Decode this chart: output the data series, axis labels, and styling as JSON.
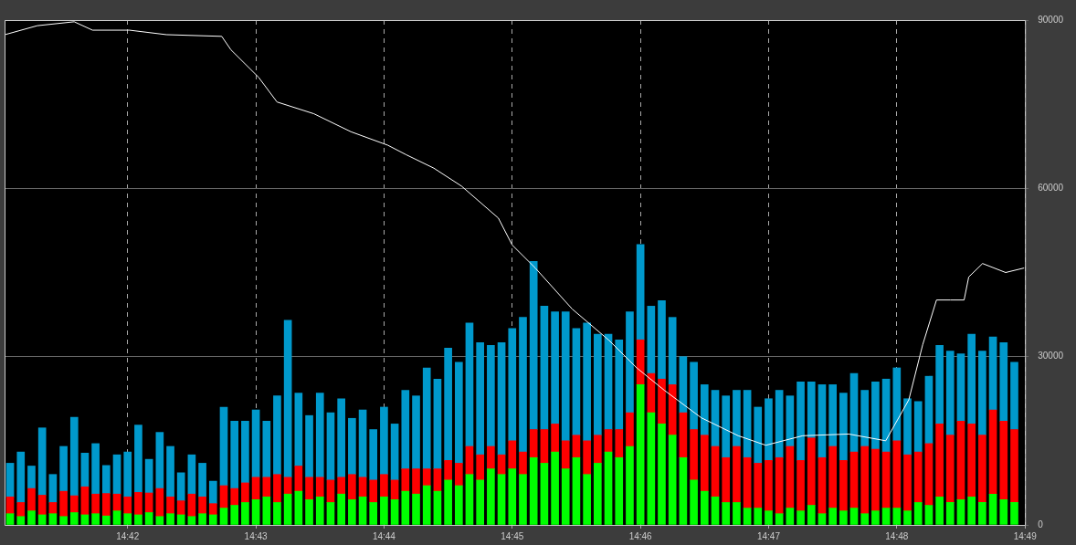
{
  "chart_data": {
    "type": "bar",
    "stacked": true,
    "grid": true,
    "x": [
      14.68472,
      14.68611,
      14.6875,
      14.68889,
      14.69028,
      14.69167,
      14.69306,
      14.69444,
      14.69583,
      14.69722,
      14.69861,
      14.7,
      14.70139,
      14.70278,
      14.70417,
      14.70556,
      14.70694,
      14.70833,
      14.70972,
      14.71111,
      14.7125,
      14.71389,
      14.71528,
      14.71667,
      14.71806,
      14.71944,
      14.72083,
      14.72222,
      14.72361,
      14.725,
      14.72639,
      14.72778,
      14.72917,
      14.73056,
      14.73194,
      14.73333,
      14.73472,
      14.73611,
      14.7375,
      14.73889,
      14.74028,
      14.74167,
      14.74306,
      14.74444,
      14.74583,
      14.74722,
      14.74861,
      14.75,
      14.75139,
      14.75278,
      14.75417,
      14.75556,
      14.75694,
      14.75833,
      14.75972,
      14.76111,
      14.7625,
      14.76389,
      14.76528,
      14.76667,
      14.76806,
      14.76944,
      14.77083,
      14.77222,
      14.77361,
      14.775,
      14.77639,
      14.77778,
      14.77917,
      14.78056,
      14.78194,
      14.78333,
      14.78472,
      14.78611,
      14.7875,
      14.78889,
      14.79028,
      14.79167,
      14.79306,
      14.79444,
      14.79583,
      14.79722,
      14.79861,
      14.8,
      14.80139,
      14.80278,
      14.80417,
      14.80556,
      14.80694,
      14.80833,
      14.80972,
      14.81111,
      14.8125,
      14.81389,
      14.81528
    ],
    "xlim": [
      14.684,
      14.81667
    ],
    "xticks": [
      {
        "value": 14.7,
        "label": "14:42"
      },
      {
        "value": 14.71667,
        "label": "14:43"
      },
      {
        "value": 14.73333,
        "label": "14:44"
      },
      {
        "value": 14.75,
        "label": "14:45"
      },
      {
        "value": 14.76667,
        "label": "14:46"
      },
      {
        "value": 14.78333,
        "label": "14:47"
      },
      {
        "value": 14.8,
        "label": "14:48"
      },
      {
        "value": 14.81667,
        "label": "14:49"
      }
    ],
    "ylim": [
      0,
      90000
    ],
    "yticks": [
      0,
      30000,
      60000,
      90000
    ],
    "series": [
      {
        "color": "#00ff00",
        "values": [
          2000,
          1500,
          2500,
          1800,
          2000,
          1500,
          2200,
          1800,
          2000,
          1600,
          2500,
          2000,
          1800,
          2200,
          1500,
          2000,
          1800,
          1500,
          2000,
          1800,
          3000,
          3500,
          4000,
          4500,
          5000,
          4000,
          5500,
          6000,
          4500,
          5000,
          4000,
          5500,
          4500,
          5000,
          4000,
          5000,
          4500,
          6000,
          5500,
          7000,
          6000,
          8000,
          7000,
          9000,
          8000,
          10000,
          9000,
          10000,
          9000,
          12000,
          11000,
          13000,
          10000,
          12000,
          9000,
          11000,
          13000,
          12000,
          14000,
          25000,
          20000,
          18000,
          16000,
          12000,
          8000,
          6000,
          5000,
          4000,
          4000,
          3000,
          3000,
          2500,
          2000,
          3000,
          2500,
          3500,
          2000,
          3000,
          2500,
          3000,
          2000,
          2500,
          3000,
          3000,
          2500,
          4000,
          3500,
          5000,
          4000,
          4500,
          5000,
          4000,
          5500,
          4500,
          4000
        ]
      },
      {
        "color": "#ff0000",
        "values": [
          3000,
          2500,
          4000,
          3500,
          2000,
          4500,
          3000,
          5000,
          3500,
          4000,
          3000,
          3000,
          4000,
          3500,
          5000,
          3000,
          2500,
          4000,
          3000,
          2000,
          4000,
          3000,
          3500,
          4000,
          3500,
          5000,
          3000,
          4500,
          4000,
          3500,
          4000,
          3000,
          4500,
          3500,
          4000,
          4000,
          3500,
          4000,
          4500,
          3000,
          4000,
          3500,
          4000,
          5000,
          4500,
          4000,
          3500,
          5000,
          4000,
          5000,
          6000,
          5000,
          5000,
          4000,
          6000,
          5000,
          4000,
          5000,
          6000,
          8000,
          7000,
          8000,
          9000,
          8000,
          9000,
          10000,
          9000,
          8000,
          10000,
          9000,
          8000,
          9000,
          10000,
          11000,
          9000,
          12000,
          10000,
          11000,
          9000,
          10000,
          12000,
          11000,
          10000,
          12000,
          10000,
          9000,
          11000,
          13000,
          12000,
          14000,
          13000,
          12000,
          15000,
          14000,
          13000
        ]
      },
      {
        "color": "#0099cc",
        "values": [
          6000,
          9000,
          4000,
          12000,
          5000,
          8000,
          14000,
          6000,
          9000,
          5000,
          7000,
          8000,
          12000,
          6000,
          10000,
          9000,
          5000,
          7000,
          6000,
          4000,
          14000,
          12000,
          11000,
          12000,
          10000,
          14000,
          28000,
          13000,
          11000,
          15000,
          12000,
          14000,
          10000,
          12000,
          9000,
          12000,
          10000,
          14000,
          13000,
          18000,
          16000,
          20000,
          18000,
          22000,
          20000,
          18000,
          20000,
          20000,
          24000,
          30000,
          22000,
          20000,
          23000,
          19000,
          21000,
          18000,
          17000,
          16000,
          18000,
          17000,
          12000,
          14000,
          12000,
          10000,
          12000,
          9000,
          10000,
          11000,
          10000,
          12000,
          10000,
          11000,
          12000,
          9000,
          14000,
          10000,
          13000,
          11000,
          12000,
          14000,
          10000,
          12000,
          13000,
          13000,
          10000,
          9000,
          12000,
          14000,
          15000,
          12000,
          16000,
          15000,
          13000,
          14000,
          12000
        ]
      },
      {
        "type": "line",
        "color": "#ffffff",
        "x": [
          14.68405,
          14.68825,
          14.69305,
          14.69544,
          14.70024,
          14.70504,
          14.71223,
          14.71343,
          14.71703,
          14.71942,
          14.72422,
          14.72902,
          14.73381,
          14.73621,
          14.73981,
          14.74341,
          14.7482,
          14.75,
          14.753,
          14.75779,
          14.76259,
          14.76619,
          14.76978,
          14.77458,
          14.77938,
          14.78297,
          14.78777,
          14.79376,
          14.79856,
          14.80156,
          14.80336,
          14.80516,
          14.80695,
          14.80875,
          14.80935,
          14.81115,
          14.81415,
          14.81655
        ],
        "values": [
          87400,
          89000,
          89700,
          88200,
          88200,
          87400,
          87100,
          84700,
          79800,
          75400,
          73300,
          70100,
          67700,
          66000,
          63600,
          60400,
          54700,
          49900,
          45800,
          38500,
          32900,
          28000,
          24000,
          19100,
          15900,
          14200,
          15900,
          16200,
          15000,
          22300,
          32100,
          40100,
          40100,
          40100,
          44200,
          46600,
          45000,
          45800
        ]
      }
    ]
  }
}
